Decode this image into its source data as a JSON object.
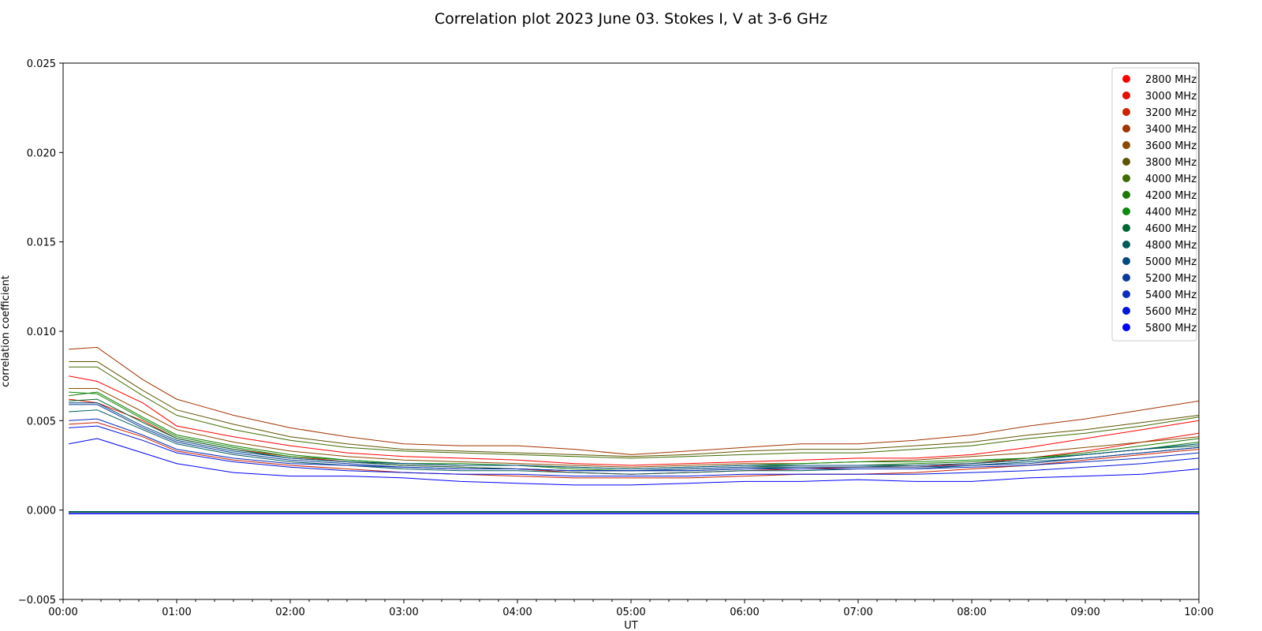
{
  "chart_data": {
    "type": "line",
    "title": "Correlation plot 2023 June 03. Stokes I, V at 3-6 GHz",
    "xlabel": "UT",
    "ylabel": "correlation coefficient",
    "xlim": [
      0,
      10
    ],
    "ylim": [
      -0.005,
      0.025
    ],
    "x_ticks": [
      {
        "value": 0,
        "label": "00:00"
      },
      {
        "value": 1,
        "label": "01:00"
      },
      {
        "value": 2,
        "label": "02:00"
      },
      {
        "value": 3,
        "label": "03:00"
      },
      {
        "value": 4,
        "label": "04:00"
      },
      {
        "value": 5,
        "label": "05:00"
      },
      {
        "value": 6,
        "label": "06:00"
      },
      {
        "value": 7,
        "label": "07:00"
      },
      {
        "value": 8,
        "label": "08:00"
      },
      {
        "value": 9,
        "label": "09:00"
      },
      {
        "value": 10,
        "label": "10:00"
      }
    ],
    "y_ticks": [
      {
        "value": -0.005,
        "label": "−0.005"
      },
      {
        "value": 0.0,
        "label": "0.000"
      },
      {
        "value": 0.005,
        "label": "0.005"
      },
      {
        "value": 0.01,
        "label": "0.010"
      },
      {
        "value": 0.015,
        "label": "0.015"
      },
      {
        "value": 0.02,
        "label": "0.020"
      },
      {
        "value": 0.025,
        "label": "0.025"
      }
    ],
    "grid": false,
    "legend_position": "top-right",
    "x": [
      0.05,
      0.3,
      0.7,
      1.0,
      1.5,
      2.0,
      2.5,
      3.0,
      3.5,
      4.0,
      4.5,
      5.0,
      5.5,
      6.0,
      6.5,
      7.0,
      7.5,
      8.0,
      8.5,
      9.0,
      9.5,
      10.0
    ],
    "series": [
      {
        "name": "2800 MHz",
        "color": "#ff0000",
        "I": [
          0.0075,
          0.0072,
          0.006,
          0.0047,
          0.0041,
          0.0036,
          0.0032,
          0.003,
          0.0029,
          0.0028,
          0.0026,
          0.0025,
          0.0026,
          0.0027,
          0.0028,
          0.0029,
          0.0029,
          0.0031,
          0.0035,
          0.004,
          0.0045,
          0.005
        ],
        "V": -0.0001
      },
      {
        "name": "3000 MHz",
        "color": "#e60f00",
        "I": [
          0.0062,
          0.006,
          0.005,
          0.004,
          0.0034,
          0.003,
          0.0027,
          0.0025,
          0.0024,
          0.0023,
          0.0021,
          0.002,
          0.0021,
          0.0022,
          0.0023,
          0.0024,
          0.0024,
          0.0026,
          0.0029,
          0.0033,
          0.0038,
          0.0043
        ],
        "V": -0.0001
      },
      {
        "name": "3200 MHz",
        "color": "#cc2200",
        "I": [
          0.0048,
          0.0049,
          0.0041,
          0.0033,
          0.0028,
          0.0025,
          0.0023,
          0.0021,
          0.002,
          0.0019,
          0.0018,
          0.0018,
          0.0018,
          0.0019,
          0.002,
          0.002,
          0.0021,
          0.0023,
          0.0025,
          0.0028,
          0.0031,
          0.0034
        ],
        "V": -0.0001
      },
      {
        "name": "3400 MHz",
        "color": "#a33300",
        "I": [
          0.009,
          0.0091,
          0.0073,
          0.0062,
          0.0053,
          0.0046,
          0.0041,
          0.0037,
          0.0036,
          0.0036,
          0.0034,
          0.0031,
          0.0033,
          0.0035,
          0.0037,
          0.0037,
          0.0039,
          0.0042,
          0.0047,
          0.0051,
          0.0056,
          0.0061
        ],
        "V": -0.0001
      },
      {
        "name": "3600 MHz",
        "color": "#8a4a00",
        "I": [
          0.0068,
          0.0068,
          0.0055,
          0.0045,
          0.0038,
          0.0033,
          0.003,
          0.0028,
          0.0027,
          0.0026,
          0.0025,
          0.0024,
          0.0025,
          0.0026,
          0.0026,
          0.0027,
          0.0028,
          0.003,
          0.0032,
          0.0035,
          0.0038,
          0.0041
        ],
        "V": -0.0001
      },
      {
        "name": "3800 MHz",
        "color": "#5e5500",
        "I": [
          0.0083,
          0.0083,
          0.0067,
          0.0056,
          0.0048,
          0.0041,
          0.0037,
          0.0034,
          0.0033,
          0.0032,
          0.0031,
          0.003,
          0.0031,
          0.0033,
          0.0034,
          0.0034,
          0.0036,
          0.0038,
          0.0042,
          0.0045,
          0.0049,
          0.0053
        ],
        "V": -0.0001
      },
      {
        "name": "4000 MHz",
        "color": "#3f6b00",
        "I": [
          0.008,
          0.008,
          0.0064,
          0.0053,
          0.0045,
          0.0039,
          0.0035,
          0.0033,
          0.0032,
          0.0031,
          0.003,
          0.0029,
          0.003,
          0.0031,
          0.0032,
          0.0032,
          0.0034,
          0.0036,
          0.004,
          0.0043,
          0.0047,
          0.0052
        ],
        "V": -0.0001
      },
      {
        "name": "4200 MHz",
        "color": "#1a7a00",
        "I": [
          0.0064,
          0.0066,
          0.0052,
          0.0042,
          0.0036,
          0.0031,
          0.0028,
          0.0026,
          0.0025,
          0.0025,
          0.0023,
          0.0022,
          0.0023,
          0.0024,
          0.0025,
          0.0025,
          0.0026,
          0.0027,
          0.0029,
          0.0032,
          0.0036,
          0.004
        ],
        "V": -0.0001
      },
      {
        "name": "4400 MHz",
        "color": "#0a8a0a",
        "I": [
          0.0066,
          0.0065,
          0.0051,
          0.0041,
          0.0035,
          0.003,
          0.0028,
          0.0026,
          0.0026,
          0.0025,
          0.0024,
          0.0023,
          0.0024,
          0.0025,
          0.0026,
          0.0027,
          0.0027,
          0.0028,
          0.0029,
          0.0031,
          0.0034,
          0.0038
        ],
        "V": -0.0001
      },
      {
        "name": "4600 MHz",
        "color": "#006633",
        "I": [
          0.0061,
          0.0062,
          0.0049,
          0.004,
          0.0034,
          0.0029,
          0.0027,
          0.0025,
          0.0024,
          0.0023,
          0.0022,
          0.0022,
          0.0022,
          0.0023,
          0.0024,
          0.0024,
          0.0025,
          0.0026,
          0.0028,
          0.0031,
          0.0034,
          0.0036
        ],
        "V": -0.0001
      },
      {
        "name": "4800 MHz",
        "color": "#005c5c",
        "I": [
          0.0055,
          0.0056,
          0.0045,
          0.0037,
          0.0031,
          0.0027,
          0.0025,
          0.0023,
          0.0022,
          0.0022,
          0.0021,
          0.002,
          0.0021,
          0.0022,
          0.0022,
          0.0023,
          0.0023,
          0.0025,
          0.0027,
          0.0029,
          0.0032,
          0.0035
        ],
        "V": -0.0001
      },
      {
        "name": "5000 MHz",
        "color": "#004c80",
        "I": [
          0.006,
          0.006,
          0.0047,
          0.0039,
          0.0033,
          0.0029,
          0.0027,
          0.0026,
          0.0025,
          0.0025,
          0.0024,
          0.0023,
          0.0024,
          0.0025,
          0.0025,
          0.0025,
          0.0025,
          0.0026,
          0.0028,
          0.0031,
          0.0034,
          0.0037
        ],
        "V": -0.0002
      },
      {
        "name": "5200 MHz",
        "color": "#0a3a99",
        "I": [
          0.0059,
          0.0059,
          0.0046,
          0.0038,
          0.0032,
          0.0028,
          0.0026,
          0.0024,
          0.0023,
          0.0023,
          0.0022,
          0.0022,
          0.0023,
          0.0024,
          0.0024,
          0.0024,
          0.0024,
          0.0025,
          0.0026,
          0.0029,
          0.0032,
          0.0035
        ],
        "V": -0.0002
      },
      {
        "name": "5400 MHz",
        "color": "#0a2dbb",
        "I": [
          0.005,
          0.0051,
          0.0042,
          0.0034,
          0.0029,
          0.0026,
          0.0025,
          0.0024,
          0.0023,
          0.0023,
          0.0022,
          0.0022,
          0.0022,
          0.0023,
          0.0023,
          0.0023,
          0.0023,
          0.0024,
          0.0025,
          0.0027,
          0.0029,
          0.0032
        ],
        "V": -0.0002
      },
      {
        "name": "5600 MHz",
        "color": "#0014dd",
        "I": [
          0.0046,
          0.0047,
          0.0039,
          0.0032,
          0.0027,
          0.0024,
          0.0022,
          0.0021,
          0.002,
          0.002,
          0.0019,
          0.0019,
          0.0019,
          0.002,
          0.002,
          0.002,
          0.002,
          0.0021,
          0.0022,
          0.0024,
          0.0026,
          0.0029
        ],
        "V": -0.0002
      },
      {
        "name": "5800 MHz",
        "color": "#0000ff",
        "I": [
          0.0037,
          0.004,
          0.0032,
          0.0026,
          0.0021,
          0.0019,
          0.0019,
          0.0018,
          0.0016,
          0.0015,
          0.0014,
          0.0014,
          0.0015,
          0.0016,
          0.0016,
          0.0017,
          0.0016,
          0.0016,
          0.0018,
          0.0019,
          0.002,
          0.0023
        ],
        "V": -0.0002
      }
    ]
  }
}
